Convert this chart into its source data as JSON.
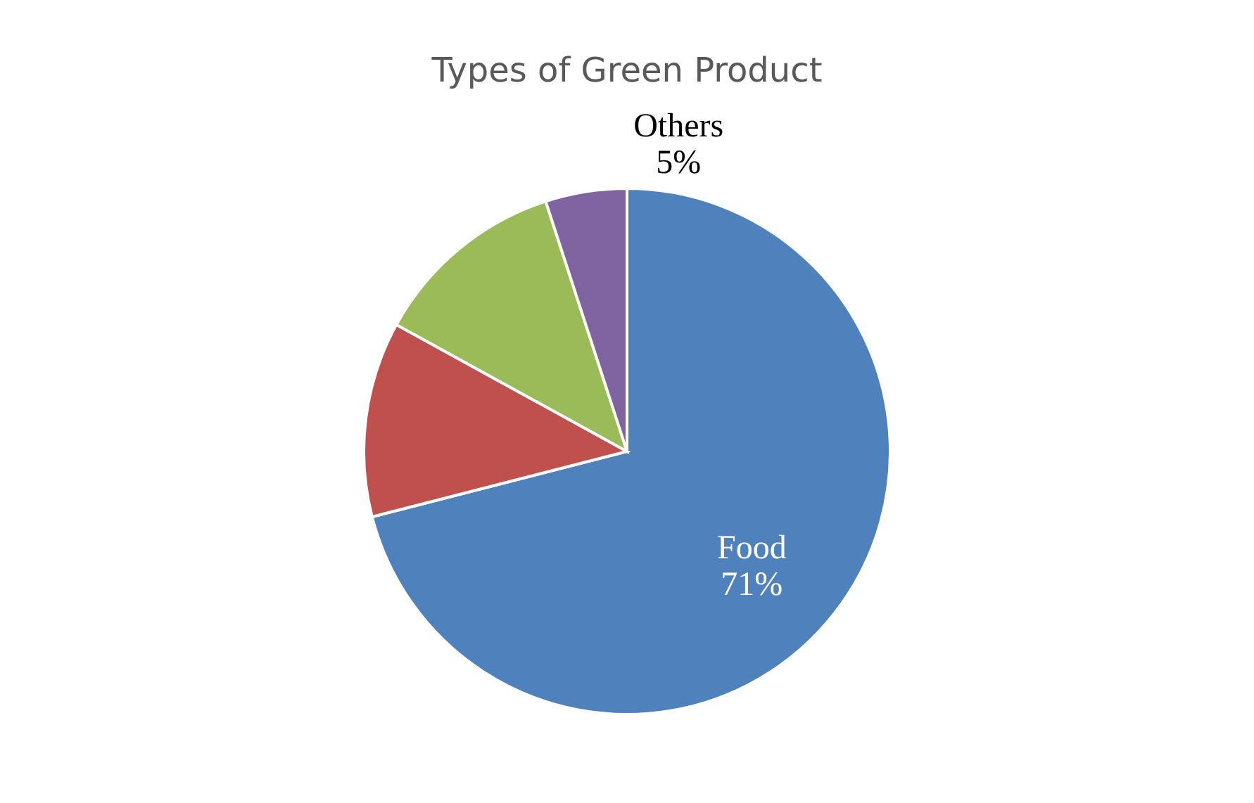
{
  "chart_data": {
    "type": "pie",
    "title": "Types of Green Product",
    "categories": [
      "Food",
      null,
      null,
      "Others"
    ],
    "values": [
      71,
      12,
      12,
      5
    ],
    "value_labels": [
      "71%",
      null,
      null,
      "5%"
    ],
    "colors": [
      "#4f81bd",
      "#c0504d",
      "#9bbb59",
      "#8064a2"
    ],
    "legend": false
  }
}
